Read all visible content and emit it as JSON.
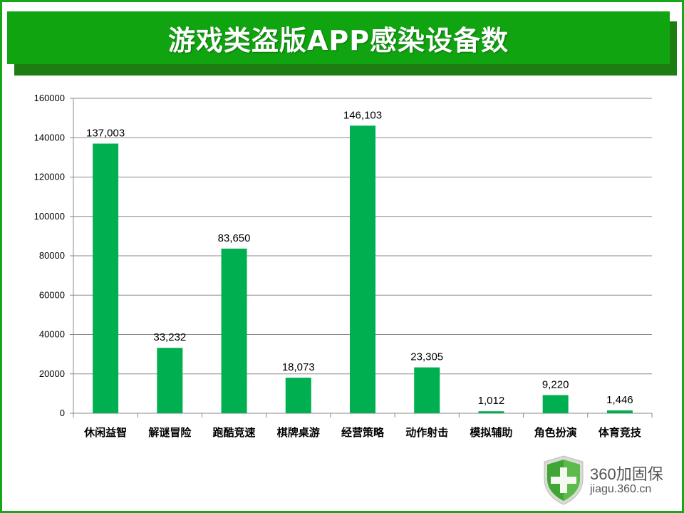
{
  "title": "游戏类盗版APP感染设备数",
  "colors": {
    "frame": "#16a816",
    "banner": "#10a510",
    "bar": "#00b050",
    "grid": "#898989"
  },
  "chart_data": {
    "type": "bar",
    "title": "游戏类盗版APP感染设备数",
    "categories": [
      "休闲益智",
      "解谜冒险",
      "跑酷竞速",
      "棋牌桌游",
      "经营策略",
      "动作射击",
      "模拟辅助",
      "角色扮演",
      "体育竞技"
    ],
    "values": [
      137003,
      33232,
      83650,
      18073,
      146103,
      23305,
      1012,
      9220,
      1446
    ],
    "value_labels": [
      "137,003",
      "33,232",
      "83,650",
      "18,073",
      "146,103",
      "23,305",
      "1,012",
      "9,220",
      "1,446"
    ],
    "ylim": [
      0,
      160000
    ],
    "y_ticks": [
      "0",
      "20000",
      "40000",
      "60000",
      "80000",
      "100000",
      "120000",
      "140000",
      "160000"
    ],
    "y_tick_values": [
      0,
      20000,
      40000,
      60000,
      80000,
      100000,
      120000,
      140000,
      160000
    ],
    "grid": true,
    "legend": "none"
  },
  "logo": {
    "icon": "shield-plus-icon",
    "name": "360加固保",
    "url": "jiagu.360.cn"
  }
}
